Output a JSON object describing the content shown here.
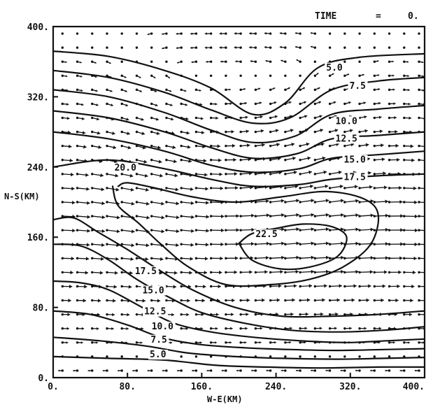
{
  "chart_data": {
    "type": "contour",
    "header": {
      "time_label": "TIME",
      "equals": "=",
      "time_value": "0."
    },
    "xlabel": "W-E(KM)",
    "ylabel": "N-S(KM)",
    "xlim": [
      0,
      400
    ],
    "ylim": [
      0,
      400
    ],
    "x_ticks": [
      "0.",
      "80.",
      "160.",
      "240.",
      "320.",
      "400."
    ],
    "y_ticks": [
      "0.",
      "80.",
      "160.",
      "240.",
      "320.",
      "400."
    ],
    "grid": false,
    "contours": [
      {
        "label": "5.0",
        "value": 5.0,
        "points": [
          [
            0,
            372
          ],
          [
            60,
            366
          ],
          [
            120,
            350
          ],
          [
            170,
            330
          ],
          [
            215,
            300
          ],
          [
            250,
            313
          ],
          [
            285,
            353
          ],
          [
            330,
            365
          ],
          [
            400,
            369
          ]
        ],
        "label_at": [
          294,
          350
        ]
      },
      {
        "label": "7.5",
        "value": 7.5,
        "points": [
          [
            0,
            350
          ],
          [
            60,
            342
          ],
          [
            120,
            325
          ],
          [
            170,
            305
          ],
          [
            215,
            290
          ],
          [
            255,
            296
          ],
          [
            300,
            328
          ],
          [
            350,
            338
          ],
          [
            400,
            342
          ]
        ],
        "label_at": [
          319,
          329
        ]
      },
      {
        "label": "10.0",
        "value": 10.0,
        "points": [
          [
            0,
            328
          ],
          [
            60,
            320
          ],
          [
            120,
            302
          ],
          [
            170,
            282
          ],
          [
            215,
            268
          ],
          [
            260,
            275
          ],
          [
            300,
            300
          ],
          [
            350,
            306
          ],
          [
            400,
            310
          ]
        ],
        "label_at": [
          304,
          289
        ]
      },
      {
        "label": "12.5",
        "value": 12.5,
        "points": [
          [
            0,
            304
          ],
          [
            60,
            296
          ],
          [
            120,
            280
          ],
          [
            170,
            262
          ],
          [
            215,
            250
          ],
          [
            262,
            255
          ],
          [
            300,
            272
          ],
          [
            350,
            276
          ],
          [
            400,
            280
          ]
        ],
        "label_at": [
          304,
          269
        ]
      },
      {
        "label": "15.0",
        "value": 15.0,
        "points": [
          [
            0,
            280
          ],
          [
            60,
            272
          ],
          [
            120,
            258
          ],
          [
            170,
            242
          ],
          [
            215,
            234
          ],
          [
            265,
            238
          ],
          [
            300,
            250
          ],
          [
            350,
            254
          ],
          [
            400,
            258
          ]
        ],
        "label_at": [
          313,
          245
        ]
      },
      {
        "label": "17.5",
        "value": 17.5,
        "points": [
          [
            0,
            240
          ],
          [
            60,
            248
          ],
          [
            120,
            238
          ],
          [
            170,
            226
          ],
          [
            215,
            218
          ],
          [
            265,
            220
          ],
          [
            300,
            226
          ],
          [
            350,
            230
          ],
          [
            400,
            232
          ]
        ],
        "label_at": [
          313,
          225
        ]
      },
      {
        "label": "20.0",
        "value": 20.0,
        "points": [
          [
            64,
            218
          ],
          [
            70,
            196
          ],
          [
            92,
            176
          ],
          [
            116,
            152
          ],
          [
            146,
            126
          ],
          [
            186,
            106
          ],
          [
            234,
            106
          ],
          [
            276,
            112
          ],
          [
            312,
            126
          ],
          [
            342,
            152
          ],
          [
            350,
            186
          ],
          [
            334,
            204
          ],
          [
            294,
            212
          ],
          [
            246,
            206
          ],
          [
            196,
            200
          ],
          [
            150,
            206
          ],
          [
            110,
            216
          ],
          [
            80,
            222
          ],
          [
            70,
            218
          ]
        ],
        "label_at": [
          66,
          236
        ]
      },
      {
        "label": "22.5",
        "value": 22.5,
        "points": [
          [
            200,
            153
          ],
          [
            214,
            134
          ],
          [
            244,
            124
          ],
          [
            276,
            126
          ],
          [
            306,
            138
          ],
          [
            316,
            160
          ],
          [
            300,
            172
          ],
          [
            270,
            175
          ],
          [
            240,
            170
          ],
          [
            214,
            164
          ],
          [
            200,
            153
          ]
        ],
        "label_at": [
          218,
          160
        ]
      },
      {
        "label": "17.5",
        "value": 17.5,
        "points": [
          [
            0,
            180
          ],
          [
            22,
            182
          ],
          [
            48,
            166
          ],
          [
            80,
            146
          ],
          [
            112,
            124
          ],
          [
            150,
            100
          ],
          [
            196,
            80
          ],
          [
            246,
            70
          ],
          [
            300,
            70
          ],
          [
            350,
            72
          ],
          [
            400,
            76
          ]
        ],
        "label_at": [
          88,
          118
        ]
      },
      {
        "label": "15.0",
        "value": 15.0,
        "points": [
          [
            0,
            152
          ],
          [
            30,
            150
          ],
          [
            60,
            134
          ],
          [
            90,
            112
          ],
          [
            124,
            92
          ],
          [
            160,
            74
          ],
          [
            206,
            62
          ],
          [
            256,
            54
          ],
          [
            306,
            52
          ],
          [
            356,
            54
          ],
          [
            400,
            58
          ]
        ],
        "label_at": [
          96,
          96
        ]
      },
      {
        "label": "12.5",
        "value": 12.5,
        "points": [
          [
            0,
            110
          ],
          [
            30,
            108
          ],
          [
            60,
            100
          ],
          [
            96,
            80
          ],
          [
            130,
            62
          ],
          [
            170,
            52
          ],
          [
            216,
            46
          ],
          [
            266,
            42
          ],
          [
            316,
            40
          ],
          [
            360,
            42
          ],
          [
            400,
            44
          ]
        ],
        "label_at": [
          98,
          72
        ]
      },
      {
        "label": "10.0",
        "value": 10.0,
        "points": [
          [
            0,
            76
          ],
          [
            40,
            72
          ],
          [
            80,
            60
          ],
          [
            116,
            46
          ],
          [
            156,
            38
          ],
          [
            206,
            34
          ],
          [
            256,
            32
          ],
          [
            306,
            31
          ],
          [
            356,
            32
          ],
          [
            400,
            33
          ]
        ],
        "label_at": [
          106,
          55
        ]
      },
      {
        "label": "7.5",
        "value": 7.5,
        "points": [
          [
            0,
            46
          ],
          [
            50,
            42
          ],
          [
            100,
            36
          ],
          [
            146,
            28
          ],
          [
            196,
            24
          ],
          [
            246,
            22
          ],
          [
            306,
            21
          ],
          [
            356,
            22
          ],
          [
            400,
            23
          ]
        ],
        "label_at": [
          105,
          40
        ]
      },
      {
        "label": "5.0",
        "value": 5.0,
        "points": [
          [
            0,
            24
          ],
          [
            60,
            22
          ],
          [
            120,
            20
          ],
          [
            176,
            14
          ],
          [
            230,
            12
          ],
          [
            290,
            11
          ],
          [
            350,
            12
          ],
          [
            400,
            12
          ]
        ],
        "label_at": [
          104,
          23
        ]
      }
    ],
    "vector_field": "wind vectors on a regular grid; westerly in the interior, strengthening toward the jet core near (290, 150) km, weak and easterly along the south edge",
    "colors": {
      "ink": "#111111",
      "background": "#ffffff"
    }
  }
}
